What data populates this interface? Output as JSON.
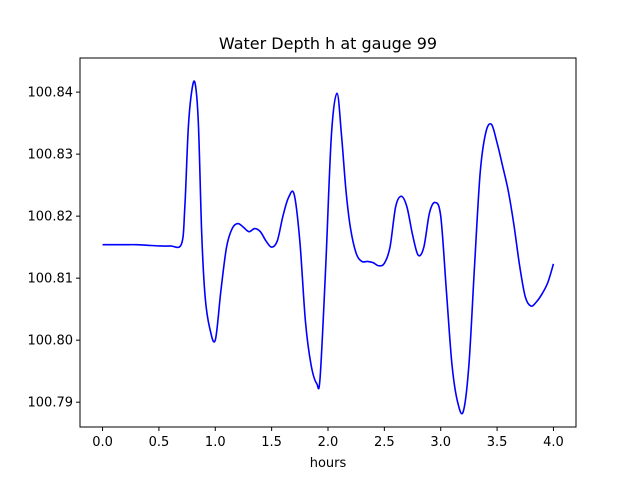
{
  "chart_data": {
    "type": "line",
    "title": "Water Depth h at gauge 99",
    "xlabel": "hours",
    "ylabel": "",
    "xlim": [
      -0.2,
      4.2
    ],
    "ylim": [
      100.786,
      100.8455
    ],
    "xticks": [
      0.0,
      0.5,
      1.0,
      1.5,
      2.0,
      2.5,
      3.0,
      3.5,
      4.0
    ],
    "xtick_labels": [
      "0.0",
      "0.5",
      "1.0",
      "1.5",
      "2.0",
      "2.5",
      "3.0",
      "3.5",
      "4.0"
    ],
    "yticks": [
      100.79,
      100.8,
      100.81,
      100.82,
      100.83,
      100.84
    ],
    "ytick_labels": [
      "100.79",
      "100.80",
      "100.81",
      "100.82",
      "100.83",
      "100.84"
    ],
    "grid": false,
    "series": [
      {
        "color": "#0000ff",
        "x": [
          0.0,
          0.1,
          0.2,
          0.3,
          0.4,
          0.5,
          0.6,
          0.7,
          0.73,
          0.76,
          0.79,
          0.82,
          0.85,
          0.88,
          0.91,
          0.95,
          1.0,
          1.05,
          1.1,
          1.15,
          1.2,
          1.25,
          1.3,
          1.35,
          1.4,
          1.45,
          1.5,
          1.55,
          1.6,
          1.65,
          1.7,
          1.75,
          1.8,
          1.85,
          1.9,
          1.93,
          1.98,
          2.03,
          2.08,
          2.12,
          2.16,
          2.2,
          2.25,
          2.3,
          2.35,
          2.4,
          2.45,
          2.5,
          2.55,
          2.6,
          2.65,
          2.7,
          2.75,
          2.8,
          2.85,
          2.9,
          2.95,
          3.0,
          3.05,
          3.1,
          3.15,
          3.2,
          3.25,
          3.3,
          3.35,
          3.4,
          3.45,
          3.5,
          3.55,
          3.6,
          3.65,
          3.7,
          3.75,
          3.8,
          3.85,
          3.9,
          3.95,
          4.0
        ],
        "y": [
          100.8154,
          100.8154,
          100.8154,
          100.8154,
          100.8153,
          100.8152,
          100.8152,
          100.8155,
          100.8215,
          100.834,
          100.84,
          100.8415,
          100.835,
          100.817,
          100.807,
          100.802,
          100.8,
          100.808,
          100.815,
          100.818,
          100.8188,
          100.8182,
          100.8175,
          100.818,
          100.8175,
          100.816,
          100.815,
          100.816,
          100.82,
          100.823,
          100.8235,
          100.816,
          100.803,
          100.796,
          100.793,
          100.794,
          100.812,
          100.833,
          100.8398,
          100.833,
          100.824,
          100.818,
          100.814,
          100.8127,
          100.8127,
          100.8125,
          100.812,
          100.8124,
          100.815,
          100.8215,
          100.8232,
          100.8215,
          100.817,
          100.8137,
          100.815,
          100.8205,
          100.8222,
          100.82,
          100.808,
          100.796,
          100.79,
          100.7885,
          100.796,
          100.812,
          100.827,
          100.8335,
          100.8348,
          100.8318,
          100.828,
          100.824,
          100.8185,
          100.812,
          100.807,
          100.8055,
          100.8062,
          100.8075,
          100.8093,
          100.8123
        ]
      }
    ]
  }
}
